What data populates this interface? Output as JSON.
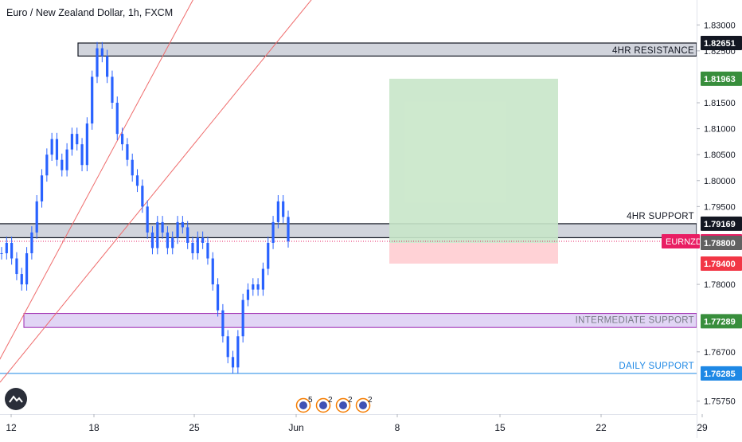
{
  "symbol_title": "Euro / New Zealand Dollar, 1h, FXCM",
  "colors": {
    "up": "#26a69a",
    "down": "#ef5350",
    "candle": "#2962ff",
    "zone_gray": "#d1d4dc",
    "zone_purple": "#e1d5f5",
    "purple": "#9c27b0",
    "profit": "#c8e6c9",
    "loss": "#ffcdd2",
    "daily": "#1e88e5",
    "trend": "#ef6c6c",
    "green_tag": "#388e3c",
    "red_tag": "#f23645",
    "pink_tag": "#e91e63",
    "dark_tag": "#131722",
    "gray_tag": "#616161"
  },
  "chart_data": {
    "type": "candlestick",
    "title": "Euro / New Zealand Dollar, 1h, FXCM",
    "y_range": [
      1.755,
      1.8348
    ],
    "y_ticks": [
      "1.83000",
      "1.82500",
      "1.81500",
      "1.81000",
      "1.80500",
      "1.80000",
      "1.79500",
      "1.78000",
      "1.76700",
      "1.75750"
    ],
    "y_tick_values": [
      1.83,
      1.825,
      1.815,
      1.81,
      1.805,
      1.8,
      1.795,
      1.78,
      1.767,
      1.7575
    ],
    "x_ticks": [
      "12",
      "18",
      "25",
      "Jun",
      "8",
      "15",
      "22",
      "29"
    ],
    "series_close": [
      1.786,
      1.788,
      1.785,
      1.782,
      1.78,
      1.786,
      1.79,
      1.796,
      1.801,
      1.805,
      1.808,
      1.804,
      1.802,
      1.806,
      1.809,
      1.807,
      1.803,
      1.811,
      1.82,
      1.8255,
      1.824,
      1.82,
      1.815,
      1.809,
      1.807,
      1.804,
      1.801,
      1.799,
      1.795,
      1.79,
      1.787,
      1.792,
      1.79,
      1.787,
      1.789,
      1.792,
      1.791,
      1.788,
      1.786,
      1.789,
      1.788,
      1.785,
      1.78,
      1.775,
      1.77,
      1.766,
      1.764,
      1.77,
      1.777,
      1.779,
      1.78,
      1.779,
      1.783,
      1.788,
      1.792,
      1.796,
      1.793,
      1.7883
    ],
    "levels": [
      {
        "label": "4HR RESISTANCE",
        "value": "1.82651",
        "top": 1.82651,
        "bottom": 1.824
      },
      {
        "label": "4HR SUPPORT",
        "value": "1.79169",
        "top": 1.79169,
        "bottom": 1.789
      },
      {
        "label": "INTERMEDIATE SUPPORT",
        "value": "1.77289",
        "top": 1.7744,
        "bottom": 1.7717
      },
      {
        "label": "DAILY SUPPORT",
        "value": "1.76285",
        "top": 1.76285
      }
    ],
    "position": {
      "target": 1.81963,
      "entry": 1.788,
      "stop": 1.784
    },
    "price_tags": [
      {
        "text": "1.82651",
        "value": 1.82651,
        "color_key": "dark_tag"
      },
      {
        "text": "1.81963",
        "value": 1.81963,
        "color_key": "green_tag"
      },
      {
        "text": "1.79169",
        "value": 1.79169,
        "color_key": "dark_tag"
      },
      {
        "text": "1.78830",
        "value": 1.7883,
        "color_key": "pink_tag",
        "prefix": "EURNZD"
      },
      {
        "text": "1.78800",
        "value": 1.788,
        "color_key": "gray_tag"
      },
      {
        "text": "1.78400",
        "value": 1.784,
        "color_key": "red_tag"
      },
      {
        "text": "1.77289",
        "value": 1.77289,
        "color_key": "green_tag"
      },
      {
        "text": "1.76285",
        "value": 1.76285,
        "color_key": "daily"
      }
    ],
    "last_price": 1.7883,
    "event_badges": [
      "5",
      "2",
      "2",
      "2"
    ]
  }
}
